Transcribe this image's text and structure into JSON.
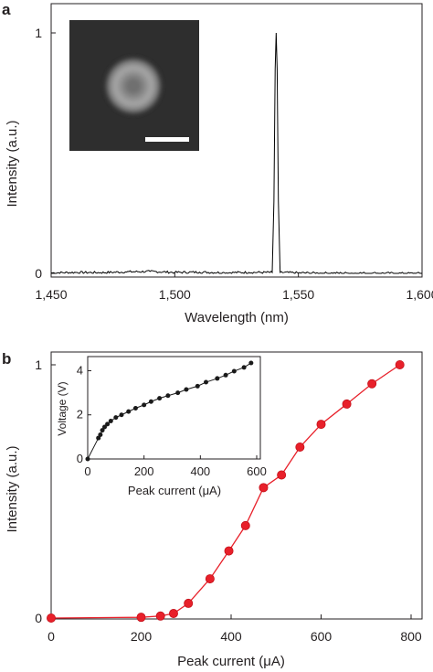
{
  "chart_data": [
    {
      "panel_label": "a",
      "type": "line",
      "xlabel": "Wavelength (nm)",
      "ylabel": "Intensity (a.u.)",
      "xlim": [
        1450,
        1600
      ],
      "ylim": [
        0,
        1
      ],
      "x_ticks": [
        {
          "value": 1450,
          "label": "1,450"
        },
        {
          "value": 1500,
          "label": "1,500"
        },
        {
          "value": 1550,
          "label": "1,550"
        },
        {
          "value": 1600,
          "label": "1,600"
        }
      ],
      "y_ticks": [
        {
          "value": 0,
          "label": "0"
        },
        {
          "value": 1,
          "label": "1"
        }
      ],
      "series": [
        {
          "color": "#000000",
          "peak": {
            "x": 1541,
            "y": 1.0
          },
          "noise_level": 0.006,
          "points": [
            [
              1450,
              0.002
            ],
            [
              1460,
              0.004
            ],
            [
              1470,
              0.003
            ],
            [
              1480,
              0.006
            ],
            [
              1490,
              0.008
            ],
            [
              1500,
              0.004
            ],
            [
              1510,
              0.005
            ],
            [
              1520,
              0.003
            ],
            [
              1530,
              0.004
            ],
            [
              1539.4,
              0.004
            ],
            [
              1540.1,
              0.3
            ],
            [
              1540.6,
              0.85
            ],
            [
              1541.0,
              1.0
            ],
            [
              1541.4,
              0.85
            ],
            [
              1541.9,
              0.3
            ],
            [
              1542.6,
              0.004
            ],
            [
              1550,
              0.002
            ],
            [
              1560,
              0.001
            ],
            [
              1570,
              0.001
            ],
            [
              1580,
              0.001
            ],
            [
              1590,
              0.0
            ],
            [
              1600,
              0.0
            ]
          ]
        }
      ],
      "inset": {
        "type": "image",
        "content": "optical mode profile (bright ring on dark background)",
        "scale_bar": true
      }
    },
    {
      "panel_label": "b",
      "type": "line",
      "xlabel": "Peak current (μA)",
      "ylabel": "Intensity (a.u.)",
      "xlim": [
        0,
        800
      ],
      "ylim": [
        0,
        1
      ],
      "x_ticks": [
        {
          "value": 0,
          "label": "0"
        },
        {
          "value": 200,
          "label": "200"
        },
        {
          "value": 400,
          "label": "400"
        },
        {
          "value": 600,
          "label": "600"
        },
        {
          "value": 800,
          "label": "800"
        }
      ],
      "y_ticks": [
        {
          "value": 0,
          "label": "0"
        },
        {
          "value": 1,
          "label": "1"
        }
      ],
      "series": [
        {
          "color": "#e8202a",
          "marker": "circle",
          "points": [
            [
              0,
              0.0
            ],
            [
              200,
              0.003
            ],
            [
              243,
              0.008
            ],
            [
              272,
              0.018
            ],
            [
              305,
              0.058
            ],
            [
              353,
              0.155
            ],
            [
              395,
              0.265
            ],
            [
              432,
              0.365
            ],
            [
              472,
              0.515
            ],
            [
              512,
              0.565
            ],
            [
              553,
              0.675
            ],
            [
              600,
              0.765
            ],
            [
              657,
              0.845
            ],
            [
              713,
              0.925
            ],
            [
              775,
              1.0
            ]
          ]
        }
      ],
      "inset": {
        "type": "line",
        "xlabel": "Peak current (μA)",
        "ylabel": "Voltage (V)",
        "xlim": [
          0,
          600
        ],
        "ylim": [
          0,
          4.6
        ],
        "x_ticks": [
          {
            "value": 0,
            "label": "0"
          },
          {
            "value": 200,
            "label": "200"
          },
          {
            "value": 400,
            "label": "400"
          },
          {
            "value": 600,
            "label": "600"
          }
        ],
        "y_ticks": [
          {
            "value": 0,
            "label": "0"
          },
          {
            "value": 2,
            "label": "2"
          },
          {
            "value": 4,
            "label": "4"
          }
        ],
        "series": [
          {
            "color": "#1a1a1a",
            "marker": "circle",
            "points": [
              [
                0,
                0.0
              ],
              [
                38,
                0.95
              ],
              [
                45,
                1.1
              ],
              [
                52,
                1.3
              ],
              [
                60,
                1.45
              ],
              [
                70,
                1.58
              ],
              [
                82,
                1.72
              ],
              [
                100,
                1.88
              ],
              [
                120,
                2.0
              ],
              [
                145,
                2.15
              ],
              [
                170,
                2.3
              ],
              [
                200,
                2.45
              ],
              [
                225,
                2.6
              ],
              [
                255,
                2.75
              ],
              [
                285,
                2.87
              ],
              [
                320,
                3.0
              ],
              [
                350,
                3.15
              ],
              [
                390,
                3.3
              ],
              [
                420,
                3.48
              ],
              [
                460,
                3.65
              ],
              [
                490,
                3.8
              ],
              [
                520,
                3.98
              ],
              [
                555,
                4.15
              ],
              [
                580,
                4.35
              ]
            ]
          }
        ]
      }
    }
  ]
}
